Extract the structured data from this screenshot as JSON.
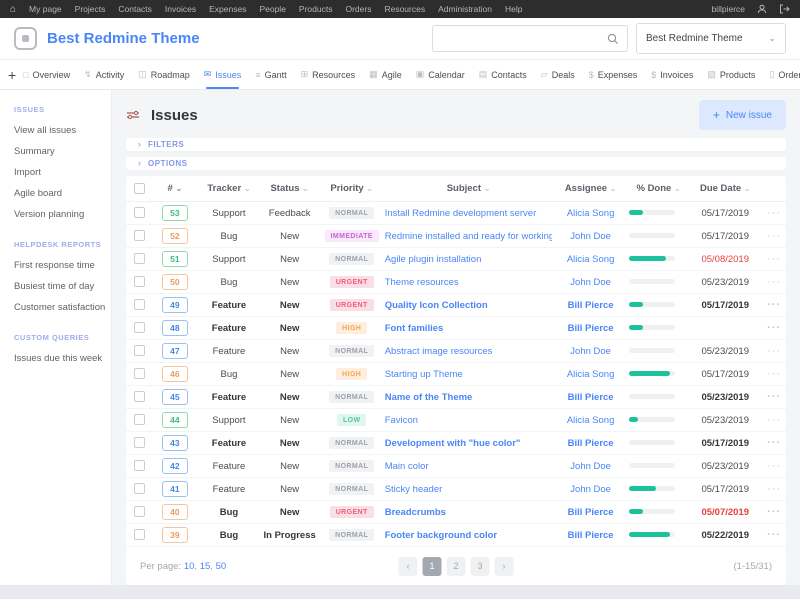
{
  "topbar": {
    "items": [
      "My page",
      "Projects",
      "Contacts",
      "Invoices",
      "Expenses",
      "People",
      "Products",
      "Orders",
      "Resources",
      "Administration",
      "Help"
    ],
    "username": "billpierce"
  },
  "header": {
    "app_title": "Best Redmine Theme",
    "search_value": "",
    "project_selector_value": "Best Redmine Theme"
  },
  "tabs": [
    {
      "label": "Overview",
      "icon": "overview-icon",
      "active": false
    },
    {
      "label": "Activity",
      "icon": "activity-icon",
      "active": false
    },
    {
      "label": "Roadmap",
      "icon": "roadmap-icon",
      "active": false
    },
    {
      "label": "Issues",
      "icon": "issues-icon",
      "active": true
    },
    {
      "label": "Gantt",
      "icon": "gantt-icon",
      "active": false
    },
    {
      "label": "Resources",
      "icon": "resources-icon",
      "active": false
    },
    {
      "label": "Agile",
      "icon": "agile-icon",
      "active": false
    },
    {
      "label": "Calendar",
      "icon": "calendar-icon",
      "active": false
    },
    {
      "label": "Contacts",
      "icon": "contacts-icon",
      "active": false
    },
    {
      "label": "Deals",
      "icon": "deals-icon",
      "active": false
    },
    {
      "label": "Expenses",
      "icon": "expenses-icon",
      "active": false
    },
    {
      "label": "Invoices",
      "icon": "invoices-icon",
      "active": false
    },
    {
      "label": "Products",
      "icon": "products-icon",
      "active": false
    },
    {
      "label": "Orders",
      "icon": "orders-icon",
      "active": false
    }
  ],
  "sidebar": {
    "sections": [
      {
        "title": "ISSUES",
        "items": [
          "View all issues",
          "Summary",
          "Import",
          "Agile board",
          "Version planning"
        ]
      },
      {
        "title": "HELPDESK REPORTS",
        "items": [
          "First response time",
          "Busiest time of day",
          "Customer satisfaction"
        ]
      },
      {
        "title": "CUSTOM QUERIES",
        "items": [
          "Issues due this week"
        ]
      }
    ]
  },
  "main": {
    "title": "Issues",
    "new_issue_label": "New issue",
    "filters_label": "FILTERS",
    "options_label": "OPTIONS",
    "table": {
      "columns": [
        "#",
        "Tracker",
        "Status",
        "Priority",
        "Subject",
        "Assignee",
        "% Done",
        "Due Date"
      ],
      "rows": [
        {
          "id": "53",
          "tracker": "Support",
          "status": "Feedback",
          "priority": "NORMAL",
          "subject": "Install Redmine development server",
          "assignee": "Alicia Song",
          "done": 30,
          "due": "05/17/2019",
          "bold": false,
          "overdue": false
        },
        {
          "id": "52",
          "tracker": "Bug",
          "status": "New",
          "priority": "IMMEDIATE",
          "subject": "Redmine installed and ready for working",
          "assignee": "John Doe",
          "done": 0,
          "due": "05/17/2019",
          "bold": false,
          "overdue": false
        },
        {
          "id": "51",
          "tracker": "Support",
          "status": "New",
          "priority": "NORMAL",
          "subject": "Agile plugin installation",
          "assignee": "Alicia Song",
          "done": 80,
          "due": "05/08/2019",
          "bold": false,
          "overdue": true
        },
        {
          "id": "50",
          "tracker": "Bug",
          "status": "New",
          "priority": "URGENT",
          "subject": "Theme resources",
          "assignee": "John Doe",
          "done": 0,
          "due": "05/23/2019",
          "bold": false,
          "overdue": false
        },
        {
          "id": "49",
          "tracker": "Feature",
          "status": "New",
          "priority": "URGENT",
          "subject": "Quality Icon Collection",
          "assignee": "Bill Pierce",
          "done": 30,
          "due": "05/17/2019",
          "bold": true,
          "overdue": false
        },
        {
          "id": "48",
          "tracker": "Feature",
          "status": "New",
          "priority": "HIGH",
          "subject": "Font families",
          "assignee": "Bill Pierce",
          "done": 30,
          "due": "",
          "bold": true,
          "overdue": false
        },
        {
          "id": "47",
          "tracker": "Feature",
          "status": "New",
          "priority": "NORMAL",
          "subject": "Abstract image resources",
          "assignee": "John Doe",
          "done": 0,
          "due": "05/23/2019",
          "bold": false,
          "overdue": false
        },
        {
          "id": "46",
          "tracker": "Bug",
          "status": "New",
          "priority": "HIGH",
          "subject": "Starting up Theme",
          "assignee": "Alicia Song",
          "done": 90,
          "due": "05/17/2019",
          "bold": false,
          "overdue": false
        },
        {
          "id": "45",
          "tracker": "Feature",
          "status": "New",
          "priority": "NORMAL",
          "subject": "Name of the Theme",
          "assignee": "Bill Pierce",
          "done": 0,
          "due": "05/23/2019",
          "bold": true,
          "overdue": false
        },
        {
          "id": "44",
          "tracker": "Support",
          "status": "New",
          "priority": "LOW",
          "subject": "Favicon",
          "assignee": "Alicia Song",
          "done": 20,
          "due": "05/23/2019",
          "bold": false,
          "overdue": false
        },
        {
          "id": "43",
          "tracker": "Feature",
          "status": "New",
          "priority": "NORMAL",
          "subject": "Development with \"hue color\"",
          "assignee": "Bill Pierce",
          "done": 0,
          "due": "05/17/2019",
          "bold": true,
          "overdue": false
        },
        {
          "id": "42",
          "tracker": "Feature",
          "status": "New",
          "priority": "NORMAL",
          "subject": "Main color",
          "assignee": "John Doe",
          "done": 0,
          "due": "05/23/2019",
          "bold": false,
          "overdue": false
        },
        {
          "id": "41",
          "tracker": "Feature",
          "status": "New",
          "priority": "NORMAL",
          "subject": "Sticky header",
          "assignee": "John Doe",
          "done": 60,
          "due": "05/17/2019",
          "bold": false,
          "overdue": false
        },
        {
          "id": "40",
          "tracker": "Bug",
          "status": "New",
          "priority": "URGENT",
          "subject": "Breadcrumbs",
          "assignee": "Bill Pierce",
          "done": 30,
          "due": "05/07/2019",
          "bold": true,
          "overdue": true
        },
        {
          "id": "39",
          "tracker": "Bug",
          "status": "In Progress",
          "priority": "NORMAL",
          "subject": "Footer background color",
          "assignee": "Bill Pierce",
          "done": 90,
          "due": "05/22/2019",
          "bold": true,
          "overdue": false
        }
      ]
    },
    "pagination": {
      "per_page_label": "Per page:",
      "per_page_options": [
        "10",
        "15",
        "50"
      ],
      "prev": "‹",
      "next": "›",
      "pages": [
        "1",
        "2",
        "3"
      ],
      "current_page": "1",
      "range_label": "(1-15/31)"
    }
  },
  "colors": {
    "topbar_bg": "#2d2d2d",
    "accent_blue": "#4a86f7",
    "progress_teal": "#1cc29b",
    "overdue_red": "#e8403a",
    "tracker_support": "#3cbd80",
    "tracker_bug": "#ef9a57",
    "tracker_feature": "#3f87e8",
    "priority_immediate": "#cb5fd8",
    "priority_urgent": "#ef5e7a",
    "priority_high": "#f2a850",
    "priority_low": "#4fc4a5",
    "priority_normal": "#9ca1a8"
  }
}
